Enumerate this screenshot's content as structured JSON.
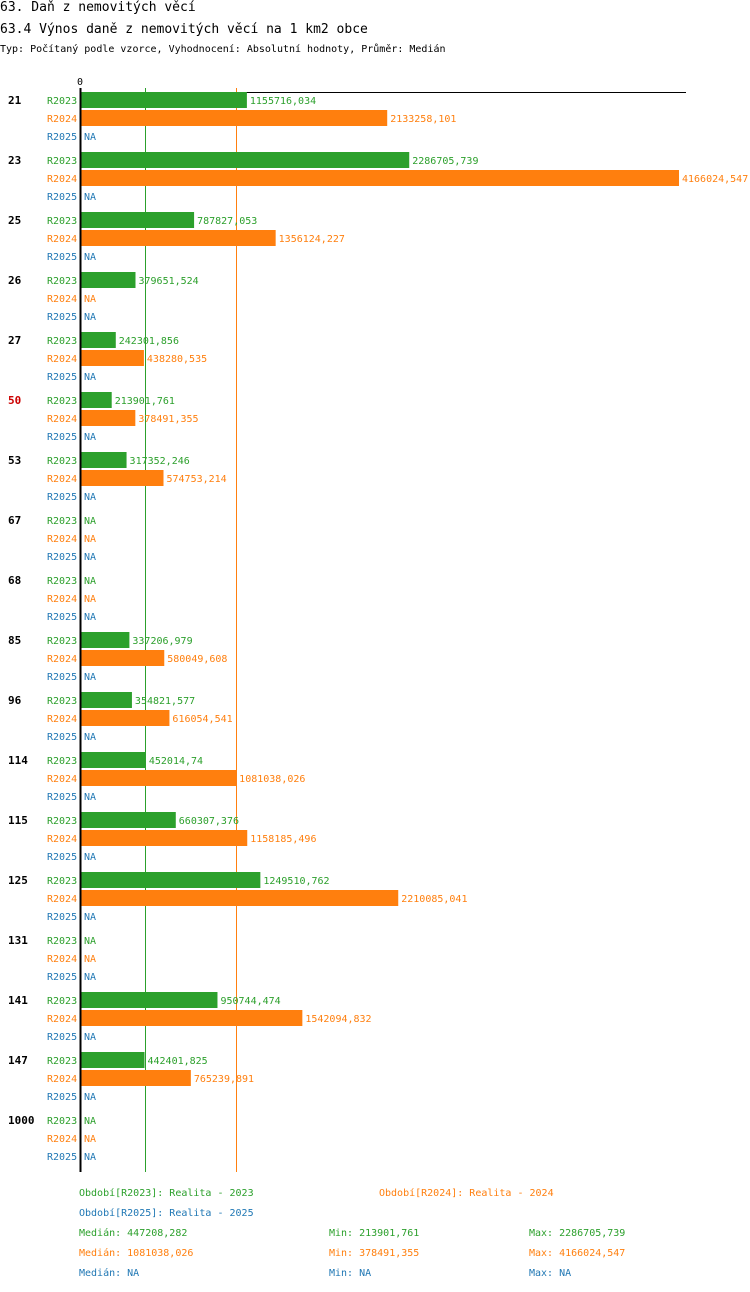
{
  "header": {
    "section_title": "63. Daň z nemovitých věcí",
    "chart_title": "63.4 Výnos daně z nemovitých věcí na 1 km2 obce",
    "subtitle": "Typ: Počítaný podle vzorce, Vyhodnocení: Absolutní hodnoty, Průměr: Medián"
  },
  "colors": {
    "R2023": "#2ca02c",
    "R2024": "#ff7f0e",
    "R2025": "#1f77b4",
    "highlight_category": "#cc0000"
  },
  "chart_data": {
    "type": "bar",
    "orientation": "horizontal",
    "axis_zero_label": "0",
    "xlim": [
      0,
      4166024.547
    ],
    "series_names": [
      "R2023",
      "R2024",
      "R2025"
    ],
    "na_label": "NA",
    "categories": [
      {
        "label": "21",
        "highlight": false,
        "values": [
          "1155716,034",
          "2133258,101",
          "NA"
        ]
      },
      {
        "label": "23",
        "highlight": false,
        "values": [
          "2286705,739",
          "4166024,547",
          "NA"
        ]
      },
      {
        "label": "25",
        "highlight": false,
        "values": [
          "787827,053",
          "1356124,227",
          "NA"
        ]
      },
      {
        "label": "26",
        "highlight": false,
        "values": [
          "379651,524",
          "NA",
          "NA"
        ]
      },
      {
        "label": "27",
        "highlight": false,
        "values": [
          "242301,856",
          "438280,535",
          "NA"
        ]
      },
      {
        "label": "50",
        "highlight": true,
        "values": [
          "213901,761",
          "378491,355",
          "NA"
        ]
      },
      {
        "label": "53",
        "highlight": false,
        "values": [
          "317352,246",
          "574753,214",
          "NA"
        ]
      },
      {
        "label": "67",
        "highlight": false,
        "values": [
          "NA",
          "NA",
          "NA"
        ]
      },
      {
        "label": "68",
        "highlight": false,
        "values": [
          "NA",
          "NA",
          "NA"
        ]
      },
      {
        "label": "85",
        "highlight": false,
        "values": [
          "337206,979",
          "580049,608",
          "NA"
        ]
      },
      {
        "label": "96",
        "highlight": false,
        "values": [
          "354821,577",
          "616054,541",
          "NA"
        ]
      },
      {
        "label": "114",
        "highlight": false,
        "values": [
          "452014,74",
          "1081038,026",
          "NA"
        ]
      },
      {
        "label": "115",
        "highlight": false,
        "values": [
          "660307,376",
          "1158185,496",
          "NA"
        ]
      },
      {
        "label": "125",
        "highlight": false,
        "values": [
          "1249510,762",
          "2210085,041",
          "NA"
        ]
      },
      {
        "label": "131",
        "highlight": false,
        "values": [
          "NA",
          "NA",
          "NA"
        ]
      },
      {
        "label": "141",
        "highlight": false,
        "values": [
          "950744,474",
          "1542094,832",
          "NA"
        ]
      },
      {
        "label": "147",
        "highlight": false,
        "values": [
          "442401,825",
          "765239,891",
          "NA"
        ]
      },
      {
        "label": "1000",
        "highlight": false,
        "values": [
          "NA",
          "NA",
          "NA"
        ]
      }
    ],
    "reference_lines": [
      {
        "series": "R2023",
        "value": 447208.282
      },
      {
        "series": "R2024",
        "value": 1081038.026
      }
    ]
  },
  "legend": {
    "period_2023": "Období[R2023]: Realita - 2023",
    "period_2024": "Období[R2024]: Realita - 2024",
    "period_2025": "Období[R2025]: Realita - 2025"
  },
  "stats": {
    "r2023": {
      "median": "Medián: 447208,282",
      "min": "Min: 213901,761",
      "max": "Max: 2286705,739"
    },
    "r2024": {
      "median": "Medián: 1081038,026",
      "min": "Min: 378491,355",
      "max": "Max: 4166024,547"
    },
    "r2025": {
      "median": "Medián: NA",
      "min": "Min: NA",
      "max": "Max: NA"
    }
  }
}
